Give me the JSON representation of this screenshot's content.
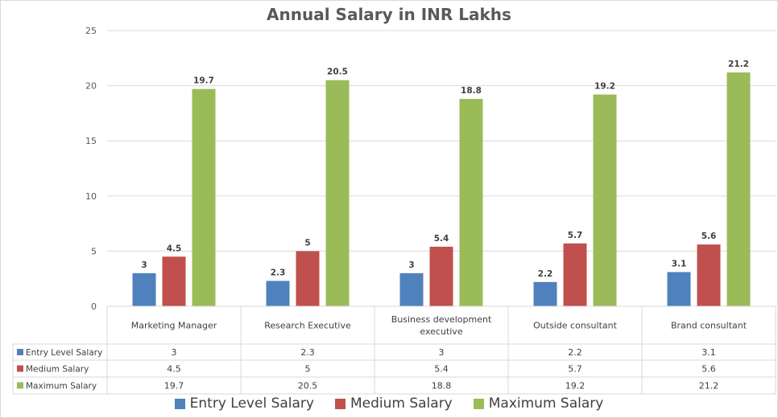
{
  "chart_data": {
    "type": "bar",
    "title": "Annual Salary in INR Lakhs",
    "xlabel": "",
    "ylabel": "",
    "ylim": [
      0,
      25
    ],
    "yticks": [
      0,
      5,
      10,
      15,
      20,
      25
    ],
    "grid": true,
    "legend_position": "bottom",
    "data_table": true,
    "categories": [
      "Marketing Manager",
      "Research Executive",
      "Business development executive",
      "Outside consultant",
      "Brand consultant"
    ],
    "category_lines": [
      [
        "Marketing Manager"
      ],
      [
        "Research Executive"
      ],
      [
        "Business development",
        "executive"
      ],
      [
        "Outside consultant"
      ],
      [
        "Brand consultant"
      ]
    ],
    "series": [
      {
        "name": "Entry Level Salary",
        "color": "#4f81bd",
        "values": [
          3,
          2.3,
          3,
          2.2,
          3.1
        ],
        "labels": [
          "3",
          "2.3",
          "3",
          "2.2",
          "3.1"
        ]
      },
      {
        "name": "Medium Salary",
        "color": "#c0504d",
        "values": [
          4.5,
          5,
          5.4,
          5.7,
          5.6
        ],
        "labels": [
          "4.5",
          "5",
          "5.4",
          "5.7",
          "5.6"
        ]
      },
      {
        "name": "Maximum Salary",
        "color": "#9bbb59",
        "values": [
          19.7,
          20.5,
          18.8,
          19.2,
          21.2
        ],
        "labels": [
          "19.7",
          "20.5",
          "18.8",
          "19.2",
          "21.2"
        ]
      }
    ]
  }
}
